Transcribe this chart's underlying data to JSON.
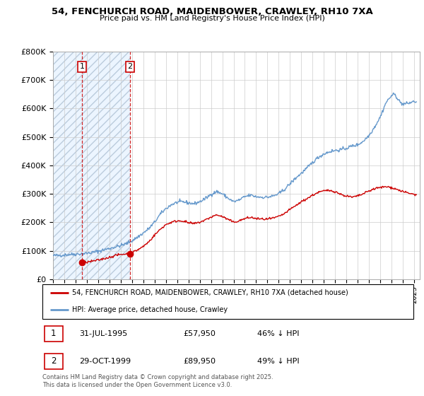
{
  "title": "54, FENCHURCH ROAD, MAIDENBOWER, CRAWLEY, RH10 7XA",
  "subtitle": "Price paid vs. HM Land Registry's House Price Index (HPI)",
  "ylim": [
    0,
    800000
  ],
  "yticks": [
    0,
    100000,
    200000,
    300000,
    400000,
    500000,
    600000,
    700000,
    800000
  ],
  "ytick_labels": [
    "£0",
    "£100K",
    "£200K",
    "£300K",
    "£400K",
    "£500K",
    "£600K",
    "£700K",
    "£800K"
  ],
  "xlim_start": 1993.0,
  "xlim_end": 2025.5,
  "purchase1_date": 1995.58,
  "purchase1_price": 57950,
  "purchase1_label": "1",
  "purchase2_date": 1999.83,
  "purchase2_price": 89950,
  "purchase2_label": "2",
  "red_line_color": "#cc0000",
  "blue_line_color": "#6699cc",
  "legend1": "54, FENCHURCH ROAD, MAIDENBOWER, CRAWLEY, RH10 7XA (detached house)",
  "legend2": "HPI: Average price, detached house, Crawley",
  "footnote": "Contains HM Land Registry data © Crown copyright and database right 2025.\nThis data is licensed under the Open Government Licence v3.0.",
  "background_color": "#ffffff",
  "grid_color": "#cccccc",
  "hpi_keypoints": [
    [
      1993.0,
      83000
    ],
    [
      1993.5,
      83500
    ],
    [
      1994.0,
      85000
    ],
    [
      1994.5,
      87000
    ],
    [
      1995.0,
      88000
    ],
    [
      1995.5,
      89000
    ],
    [
      1996.0,
      91000
    ],
    [
      1996.5,
      94000
    ],
    [
      1997.0,
      98000
    ],
    [
      1997.5,
      103000
    ],
    [
      1998.0,
      108000
    ],
    [
      1998.5,
      113000
    ],
    [
      1999.0,
      118000
    ],
    [
      1999.5,
      125000
    ],
    [
      2000.0,
      135000
    ],
    [
      2000.5,
      148000
    ],
    [
      2001.0,
      162000
    ],
    [
      2001.5,
      178000
    ],
    [
      2002.0,
      200000
    ],
    [
      2002.5,
      228000
    ],
    [
      2003.0,
      248000
    ],
    [
      2003.5,
      262000
    ],
    [
      2004.0,
      270000
    ],
    [
      2004.5,
      272000
    ],
    [
      2005.0,
      268000
    ],
    [
      2005.5,
      265000
    ],
    [
      2006.0,
      272000
    ],
    [
      2006.5,
      283000
    ],
    [
      2007.0,
      298000
    ],
    [
      2007.5,
      308000
    ],
    [
      2008.0,
      300000
    ],
    [
      2008.5,
      285000
    ],
    [
      2009.0,
      272000
    ],
    [
      2009.5,
      278000
    ],
    [
      2010.0,
      290000
    ],
    [
      2010.5,
      295000
    ],
    [
      2011.0,
      290000
    ],
    [
      2011.5,
      288000
    ],
    [
      2012.0,
      288000
    ],
    [
      2012.5,
      292000
    ],
    [
      2013.0,
      300000
    ],
    [
      2013.5,
      315000
    ],
    [
      2014.0,
      335000
    ],
    [
      2014.5,
      355000
    ],
    [
      2015.0,
      372000
    ],
    [
      2015.5,
      390000
    ],
    [
      2016.0,
      410000
    ],
    [
      2016.5,
      428000
    ],
    [
      2017.0,
      440000
    ],
    [
      2017.5,
      448000
    ],
    [
      2018.0,
      452000
    ],
    [
      2018.5,
      455000
    ],
    [
      2019.0,
      460000
    ],
    [
      2019.5,
      468000
    ],
    [
      2020.0,
      472000
    ],
    [
      2020.5,
      485000
    ],
    [
      2021.0,
      505000
    ],
    [
      2021.5,
      535000
    ],
    [
      2022.0,
      570000
    ],
    [
      2022.5,
      620000
    ],
    [
      2023.0,
      645000
    ],
    [
      2023.25,
      650000
    ],
    [
      2023.5,
      638000
    ],
    [
      2023.75,
      622000
    ],
    [
      2024.0,
      615000
    ],
    [
      2024.5,
      618000
    ],
    [
      2025.0,
      625000
    ],
    [
      2025.2,
      622000
    ]
  ],
  "red_keypoints": [
    [
      1995.58,
      57950
    ],
    [
      1995.75,
      58500
    ],
    [
      1996.0,
      60000
    ],
    [
      1996.5,
      63000
    ],
    [
      1997.0,
      67000
    ],
    [
      1997.5,
      72000
    ],
    [
      1998.0,
      77000
    ],
    [
      1998.5,
      83000
    ],
    [
      1999.0,
      87000
    ],
    [
      1999.83,
      89950
    ],
    [
      2000.0,
      93000
    ],
    [
      2000.5,
      103000
    ],
    [
      2001.0,
      115000
    ],
    [
      2001.5,
      132000
    ],
    [
      2002.0,
      155000
    ],
    [
      2002.5,
      175000
    ],
    [
      2003.0,
      192000
    ],
    [
      2003.5,
      200000
    ],
    [
      2004.0,
      205000
    ],
    [
      2004.5,
      205000
    ],
    [
      2005.0,
      198000
    ],
    [
      2005.5,
      195000
    ],
    [
      2006.0,
      200000
    ],
    [
      2006.5,
      208000
    ],
    [
      2007.0,
      218000
    ],
    [
      2007.5,
      226000
    ],
    [
      2008.0,
      220000
    ],
    [
      2008.5,
      210000
    ],
    [
      2009.0,
      200000
    ],
    [
      2009.5,
      205000
    ],
    [
      2010.0,
      213000
    ],
    [
      2010.5,
      217000
    ],
    [
      2011.0,
      213000
    ],
    [
      2011.5,
      211000
    ],
    [
      2012.0,
      211000
    ],
    [
      2012.5,
      214000
    ],
    [
      2013.0,
      220000
    ],
    [
      2013.5,
      230000
    ],
    [
      2014.0,
      245000
    ],
    [
      2014.5,
      258000
    ],
    [
      2015.0,
      272000
    ],
    [
      2015.5,
      283000
    ],
    [
      2016.0,
      295000
    ],
    [
      2016.5,
      305000
    ],
    [
      2017.0,
      310000
    ],
    [
      2017.5,
      312000
    ],
    [
      2018.0,
      308000
    ],
    [
      2018.5,
      298000
    ],
    [
      2019.0,
      292000
    ],
    [
      2019.5,
      288000
    ],
    [
      2020.0,
      292000
    ],
    [
      2020.5,
      300000
    ],
    [
      2021.0,
      310000
    ],
    [
      2021.5,
      318000
    ],
    [
      2022.0,
      322000
    ],
    [
      2022.5,
      325000
    ],
    [
      2023.0,
      322000
    ],
    [
      2023.5,
      315000
    ],
    [
      2024.0,
      308000
    ],
    [
      2024.5,
      302000
    ],
    [
      2025.0,
      298000
    ],
    [
      2025.2,
      296000
    ]
  ]
}
